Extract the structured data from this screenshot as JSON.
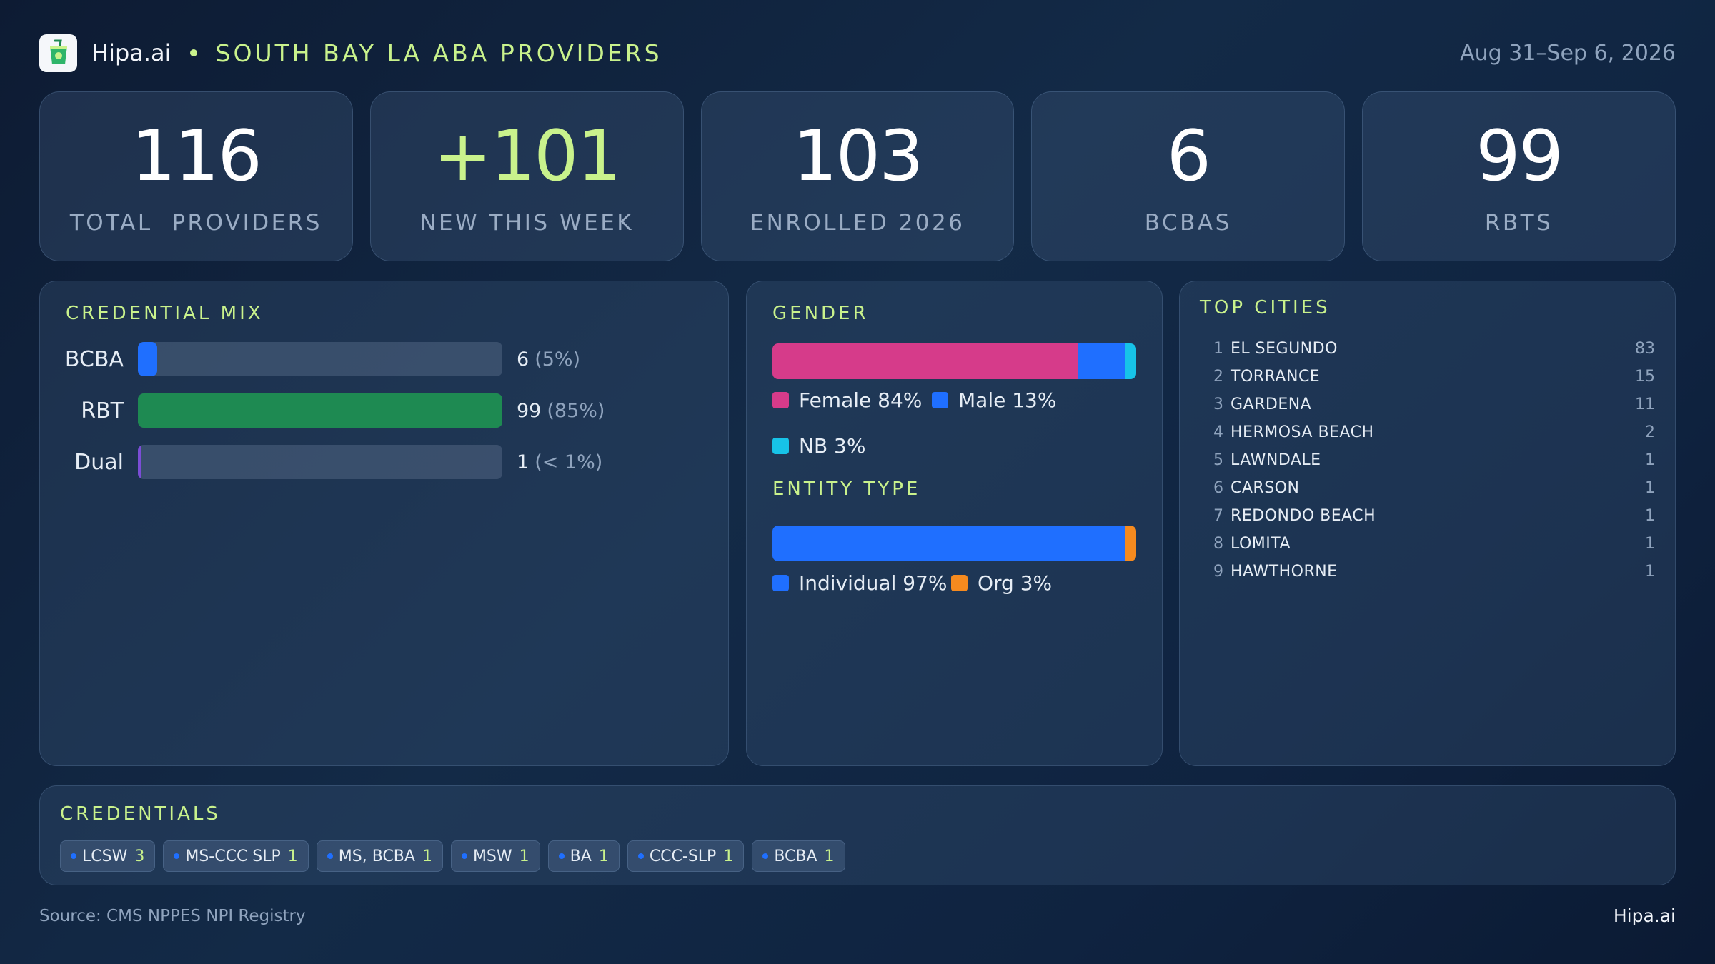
{
  "header": {
    "brand": "Hipa.ai",
    "title": "SOUTH BAY LA ABA PROVIDERS",
    "date_range": "Aug 31–Sep 6, 2026"
  },
  "kpis": [
    {
      "value": "116",
      "label": "TOTAL  PROVIDERS",
      "accent": false
    },
    {
      "value": "+101",
      "label": "NEW THIS WEEK",
      "accent": true
    },
    {
      "value": "103",
      "label": "ENROLLED 2026",
      "accent": false
    },
    {
      "value": "6",
      "label": "BCBAS",
      "accent": false
    },
    {
      "value": "99",
      "label": "RBTS",
      "accent": false
    }
  ],
  "credential_mix": {
    "title": "CREDENTIAL MIX",
    "rows": [
      {
        "label": "BCBA",
        "count": "6",
        "pct": "(5%)",
        "fraction": 0.052,
        "color": "#1f6fff"
      },
      {
        "label": "RBT",
        "count": "99",
        "pct": "(85%)",
        "fraction": 1.0,
        "color": "#1e8a52"
      },
      {
        "label": "Dual",
        "count": "1",
        "pct": "(< 1%)",
        "fraction": 0.009,
        "color": "#7b4dd6"
      }
    ]
  },
  "gender": {
    "title": "GENDER",
    "segments": [
      {
        "label": "Female 84%",
        "fraction": 0.84,
        "color": "#d63b8a"
      },
      {
        "label": "Male 13%",
        "fraction": 0.13,
        "color": "#1f6fff"
      },
      {
        "label": "NB 3%",
        "fraction": 0.03,
        "color": "#17c3e8"
      }
    ]
  },
  "entity_type": {
    "title": "ENTITY TYPE",
    "segments": [
      {
        "label": "Individual 97%",
        "fraction": 0.97,
        "color": "#1f6fff"
      },
      {
        "label": "Org 3%",
        "fraction": 0.03,
        "color": "#f58a1f"
      }
    ]
  },
  "top_cities": {
    "title": "TOP CITIES",
    "rows": [
      {
        "rank": "1",
        "name": "EL SEGUNDO",
        "count": "83"
      },
      {
        "rank": "2",
        "name": "TORRANCE",
        "count": "15"
      },
      {
        "rank": "3",
        "name": "GARDENA",
        "count": "11"
      },
      {
        "rank": "4",
        "name": "HERMOSA BEACH",
        "count": "2"
      },
      {
        "rank": "5",
        "name": "LAWNDALE",
        "count": "1"
      },
      {
        "rank": "6",
        "name": "CARSON",
        "count": "1"
      },
      {
        "rank": "7",
        "name": "REDONDO BEACH",
        "count": "1"
      },
      {
        "rank": "8",
        "name": "LOMITA",
        "count": "1"
      },
      {
        "rank": "9",
        "name": "HAWTHORNE",
        "count": "1"
      }
    ]
  },
  "credentials": {
    "title": "CREDENTIALS",
    "chips": [
      {
        "label": "LCSW",
        "count": "3"
      },
      {
        "label": "MS-CCC SLP",
        "count": "1"
      },
      {
        "label": "MS, BCBA",
        "count": "1"
      },
      {
        "label": "MSW",
        "count": "1"
      },
      {
        "label": "BA",
        "count": "1"
      },
      {
        "label": "CCC-SLP",
        "count": "1"
      },
      {
        "label": "BCBA",
        "count": "1"
      }
    ]
  },
  "footer": {
    "source": "Source: CMS NPPES NPI Registry",
    "brand": "Hipa.ai"
  },
  "colors": {
    "accent": "#c9f28c",
    "background": "#0f2340"
  },
  "icons": {
    "logo": "cup-drink-icon"
  }
}
